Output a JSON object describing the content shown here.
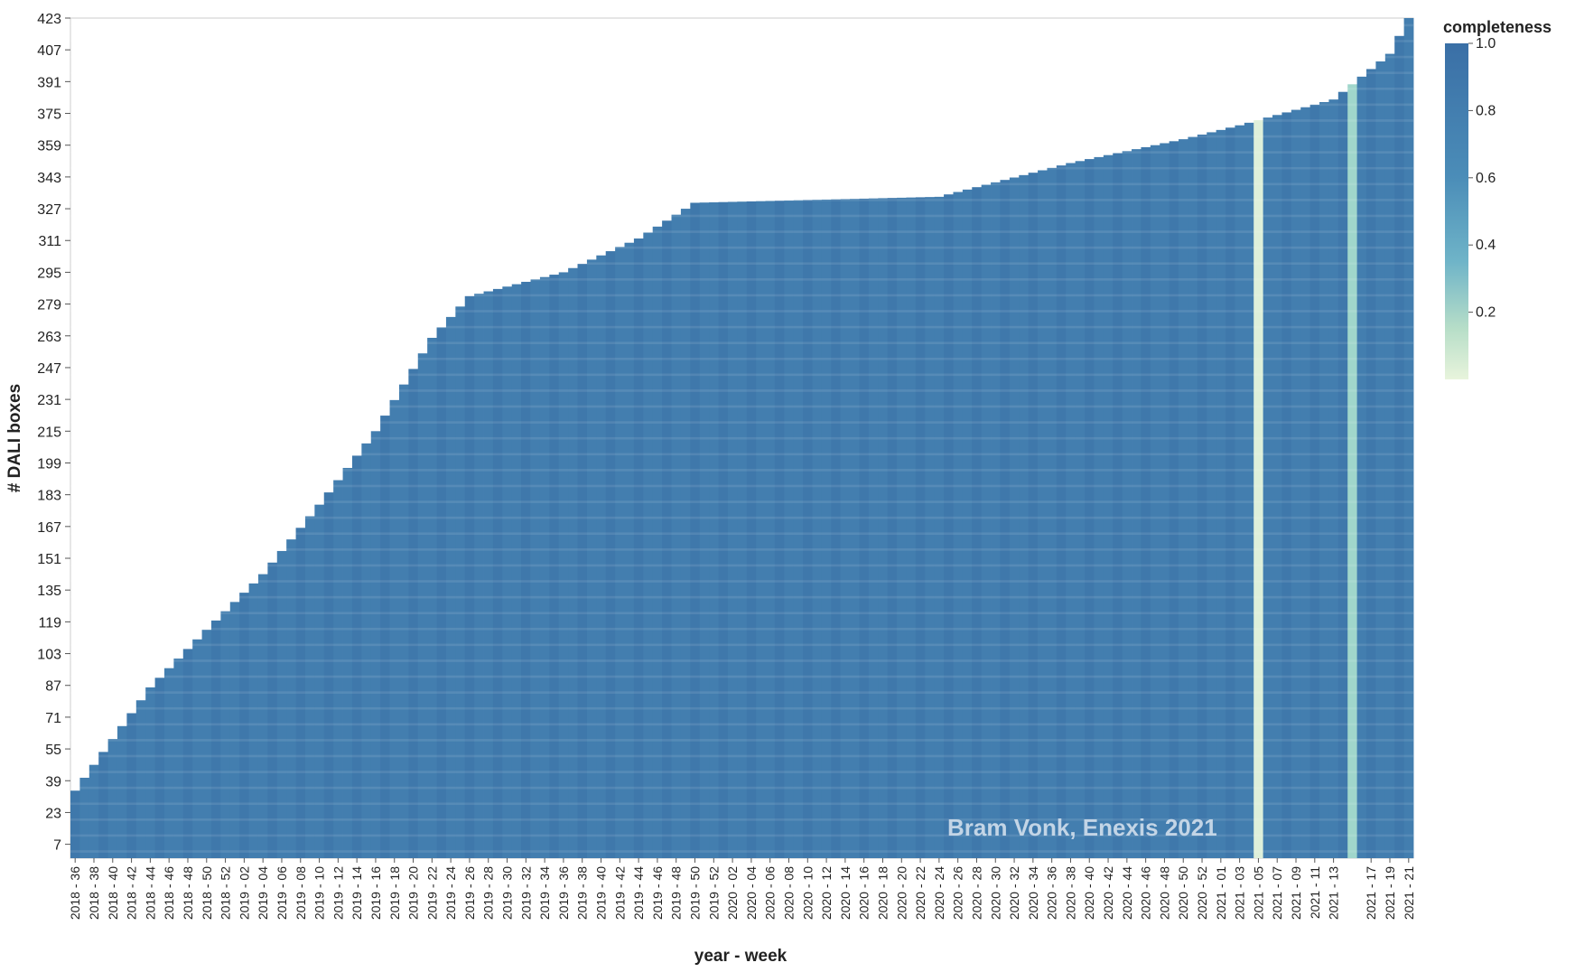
{
  "chart_data": {
    "type": "heatmap",
    "title": "",
    "xlabel": "year - week",
    "ylabel": "# DALI boxes",
    "x_tick_labels": [
      "2018 - 36",
      "2018 - 38",
      "2018 - 40",
      "2018 - 42",
      "2018 - 44",
      "2018 - 46",
      "2018 - 48",
      "2018 - 50",
      "2018 - 52",
      "2019 - 02",
      "2019 - 04",
      "2019 - 06",
      "2019 - 08",
      "2019 - 10",
      "2019 - 12",
      "2019 - 14",
      "2019 - 16",
      "2019 - 18",
      "2019 - 20",
      "2019 - 22",
      "2019 - 24",
      "2019 - 26",
      "2019 - 28",
      "2019 - 30",
      "2019 - 32",
      "2019 - 34",
      "2019 - 36",
      "2019 - 38",
      "2019 - 40",
      "2019 - 42",
      "2019 - 44",
      "2019 - 46",
      "2019 - 48",
      "2019 - 50",
      "2019 - 52",
      "2020 - 02",
      "2020 - 04",
      "2020 - 06",
      "2020 - 08",
      "2020 - 10",
      "2020 - 12",
      "2020 - 14",
      "2020 - 16",
      "2020 - 18",
      "2020 - 20",
      "2020 - 22",
      "2020 - 24",
      "2020 - 26",
      "2020 - 28",
      "2020 - 30",
      "2020 - 32",
      "2020 - 34",
      "2020 - 36",
      "2020 - 38",
      "2020 - 40",
      "2020 - 42",
      "2020 - 44",
      "2020 - 46",
      "2020 - 48",
      "2020 - 50",
      "2020 - 52",
      "2021 - 01",
      "2021 - 03",
      "2021 - 05",
      "2021 - 07",
      "2021 - 09",
      "2021 - 11",
      "2021 - 13",
      "2021 - 17",
      "2021 - 19",
      "2021 - 21"
    ],
    "y_tick_labels": [
      "7",
      "23",
      "39",
      "55",
      "71",
      "87",
      "103",
      "119",
      "135",
      "151",
      "167",
      "183",
      "199",
      "215",
      "231",
      "247",
      "263",
      "279",
      "295",
      "311",
      "327",
      "343",
      "359",
      "375",
      "391",
      "407",
      "423"
    ],
    "y_range": [
      0,
      423
    ],
    "weeks_shown": 143,
    "boxes_active_by_week_samples": [
      {
        "week": "2018 - 36",
        "boxes": 34
      },
      {
        "week": "2018 - 44",
        "boxes": 86
      },
      {
        "week": "2018 - 50",
        "boxes": 115
      },
      {
        "week": "2019 - 04",
        "boxes": 143
      },
      {
        "week": "2019 - 10",
        "boxes": 178
      },
      {
        "week": "2019 - 16",
        "boxes": 215
      },
      {
        "week": "2019 - 22",
        "boxes": 262
      },
      {
        "week": "2019 - 26",
        "boxes": 283
      },
      {
        "week": "2019 - 36",
        "boxes": 295
      },
      {
        "week": "2019 - 44",
        "boxes": 312
      },
      {
        "week": "2019 - 50",
        "boxes": 330
      },
      {
        "week": "2020 - 24",
        "boxes": 333
      },
      {
        "week": "2020 - 38",
        "boxes": 350
      },
      {
        "week": "2020 - 50",
        "boxes": 362
      },
      {
        "week": "2021 - 03",
        "boxes": 369
      },
      {
        "week": "2021 - 13",
        "boxes": 382
      },
      {
        "week": "2021 - 19",
        "boxes": 405
      },
      {
        "week": "2021 - 21",
        "boxes": 423
      }
    ],
    "low_completeness_weeks": [
      {
        "week": "2021 - 05",
        "completeness": 0.05
      },
      {
        "week": "2021 - 15",
        "completeness": 0.35
      }
    ],
    "typical_completeness": 0.9,
    "legend": {
      "title": "completeness",
      "position": "top-right",
      "ticks": [
        "1.0",
        "0.8",
        "0.6",
        "0.4",
        "0.2"
      ],
      "color_high": "#3a6fa6",
      "color_mid": "#6fb4c8",
      "color_low": "#e8f4dc"
    },
    "grid": false,
    "annotation": "Bram Vonk, Enexis 2021"
  }
}
